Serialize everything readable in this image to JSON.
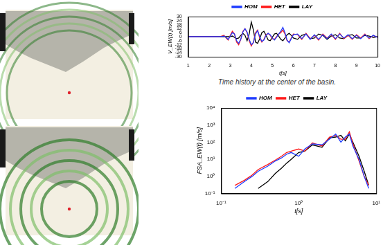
{
  "chart_data": [
    {
      "type": "line",
      "x_label": "t[s]",
      "y_label": "V_EW(t) [m/s]",
      "annotation": "Time history at the center of the basin.",
      "x": [
        1,
        2,
        2.5,
        2.6,
        2.7,
        2.8,
        2.9,
        3.0,
        3.1,
        3.2,
        3.3,
        3.4,
        3.5,
        3.6,
        3.7,
        3.8,
        3.9,
        4.0,
        4.1,
        4.2,
        4.3,
        4.4,
        4.5,
        4.6,
        4.7,
        4.8,
        4.9,
        5.0,
        5.1,
        5.2,
        5.3,
        5.4,
        5.5,
        5.6,
        5.7,
        5.8,
        5.9,
        6.0,
        6.2,
        6.4,
        6.6,
        6.8,
        7.0,
        7.2,
        7.4,
        7.6,
        7.8,
        8.0,
        8.2,
        8.4,
        8.6,
        8.8,
        9.0,
        9.2,
        9.4,
        9.6,
        9.8,
        10.0
      ],
      "series": [
        {
          "name": "HOM",
          "color": "#1f3cff",
          "values": [
            0,
            0,
            0,
            0,
            1,
            -1,
            -4,
            1,
            6,
            4,
            -6,
            -10,
            -4,
            7,
            12,
            7,
            -4,
            -12,
            -9,
            4,
            9,
            0,
            -7,
            -5,
            2,
            5,
            3,
            -2,
            -5,
            -1,
            4,
            8,
            14,
            6,
            -5,
            -9,
            -3,
            3,
            4,
            -3,
            4,
            -4,
            3,
            -4,
            3,
            -3,
            4,
            -3,
            4,
            -2,
            3,
            -3,
            2,
            -3,
            3,
            -2,
            2,
            -1
          ]
        },
        {
          "name": "HET",
          "color": "#ff1a1a",
          "values": [
            0,
            0,
            0,
            1,
            2,
            -2,
            -5,
            2,
            8,
            4,
            -8,
            -12,
            -4,
            8,
            12,
            6,
            -6,
            -14,
            -8,
            6,
            10,
            -2,
            -8,
            -4,
            3,
            5,
            2,
            -3,
            -4,
            0,
            4,
            6,
            10,
            4,
            -6,
            -8,
            -2,
            4,
            3,
            -4,
            5,
            -3,
            2,
            -5,
            4,
            -2,
            3,
            -4,
            5,
            -3,
            2,
            -4,
            3,
            -2,
            4,
            -3,
            2,
            -1
          ]
        },
        {
          "name": "LAY",
          "color": "#000000",
          "values": [
            0,
            0,
            0,
            0,
            0,
            0,
            0,
            0,
            1,
            -1,
            -3,
            -2,
            2,
            5,
            2,
            -6,
            4,
            22,
            10,
            -8,
            -10,
            -3,
            6,
            8,
            2,
            -5,
            -6,
            -1,
            4,
            5,
            1,
            -4,
            -6,
            -2,
            3,
            5,
            2,
            -2,
            -4,
            2,
            4,
            -3,
            -2,
            4,
            2,
            -4,
            1,
            3,
            -2,
            -3,
            2,
            3,
            -2,
            -2,
            2,
            1,
            -1,
            0
          ]
        }
      ],
      "xlim": [
        1,
        10
      ],
      "xticks": [
        1,
        2,
        3,
        4,
        5,
        6,
        7,
        8,
        9,
        10
      ],
      "ylim": [
        -30,
        30
      ],
      "yticks": [
        -30,
        -24,
        -18,
        -12,
        -6,
        0,
        6,
        12,
        18,
        24,
        30
      ],
      "grid": false,
      "legend": "top"
    },
    {
      "type": "line",
      "x_label": "t[s]",
      "y_label": "FSA_EW(f) [m/s]",
      "log": true,
      "x": [
        0.15,
        0.2,
        0.25,
        0.3,
        0.4,
        0.5,
        0.6,
        0.7,
        0.8,
        1,
        1.2,
        1.5,
        2,
        2.5,
        3,
        3.5,
        4,
        4.5,
        5,
        6,
        7,
        8
      ],
      "series": [
        {
          "name": "HOM",
          "color": "#1f3cff",
          "values": [
            0.2,
            0.5,
            1,
            2,
            4,
            8,
            12,
            20,
            25,
            15,
            40,
            80,
            70,
            150,
            300,
            100,
            200,
            300,
            60,
            10,
            1,
            0.2
          ]
        },
        {
          "name": "HET",
          "color": "#ff1a1a",
          "values": [
            0.3,
            0.6,
            1.2,
            2.5,
            5,
            9,
            15,
            25,
            30,
            40,
            30,
            90,
            60,
            200,
            250,
            150,
            150,
            400,
            80,
            8,
            1,
            0.3
          ]
        },
        {
          "name": "LAY",
          "color": "#000000",
          "values": [
            null,
            null,
            null,
            0.2,
            0.5,
            1.5,
            3,
            6,
            10,
            25,
            30,
            70,
            50,
            180,
            200,
            250,
            120,
            300,
            100,
            15,
            2,
            0.3
          ]
        }
      ],
      "xlim": [
        0.1,
        10
      ],
      "xticks": [
        {
          "value": 0.1,
          "label": "10⁻¹"
        },
        {
          "value": 1,
          "label": "10⁰"
        },
        {
          "value": 10,
          "label": "10¹"
        }
      ],
      "ylim": [
        0.1,
        10000
      ],
      "yticks": [
        {
          "value": 0.1,
          "label": "10⁻¹"
        },
        {
          "value": 1,
          "label": "10⁰"
        },
        {
          "value": 10,
          "label": "10¹"
        },
        {
          "value": 100,
          "label": "10²"
        },
        {
          "value": 1000,
          "label": "10³"
        },
        {
          "value": 10000,
          "label": "10⁴"
        }
      ],
      "grid": false,
      "legend": "top"
    }
  ]
}
